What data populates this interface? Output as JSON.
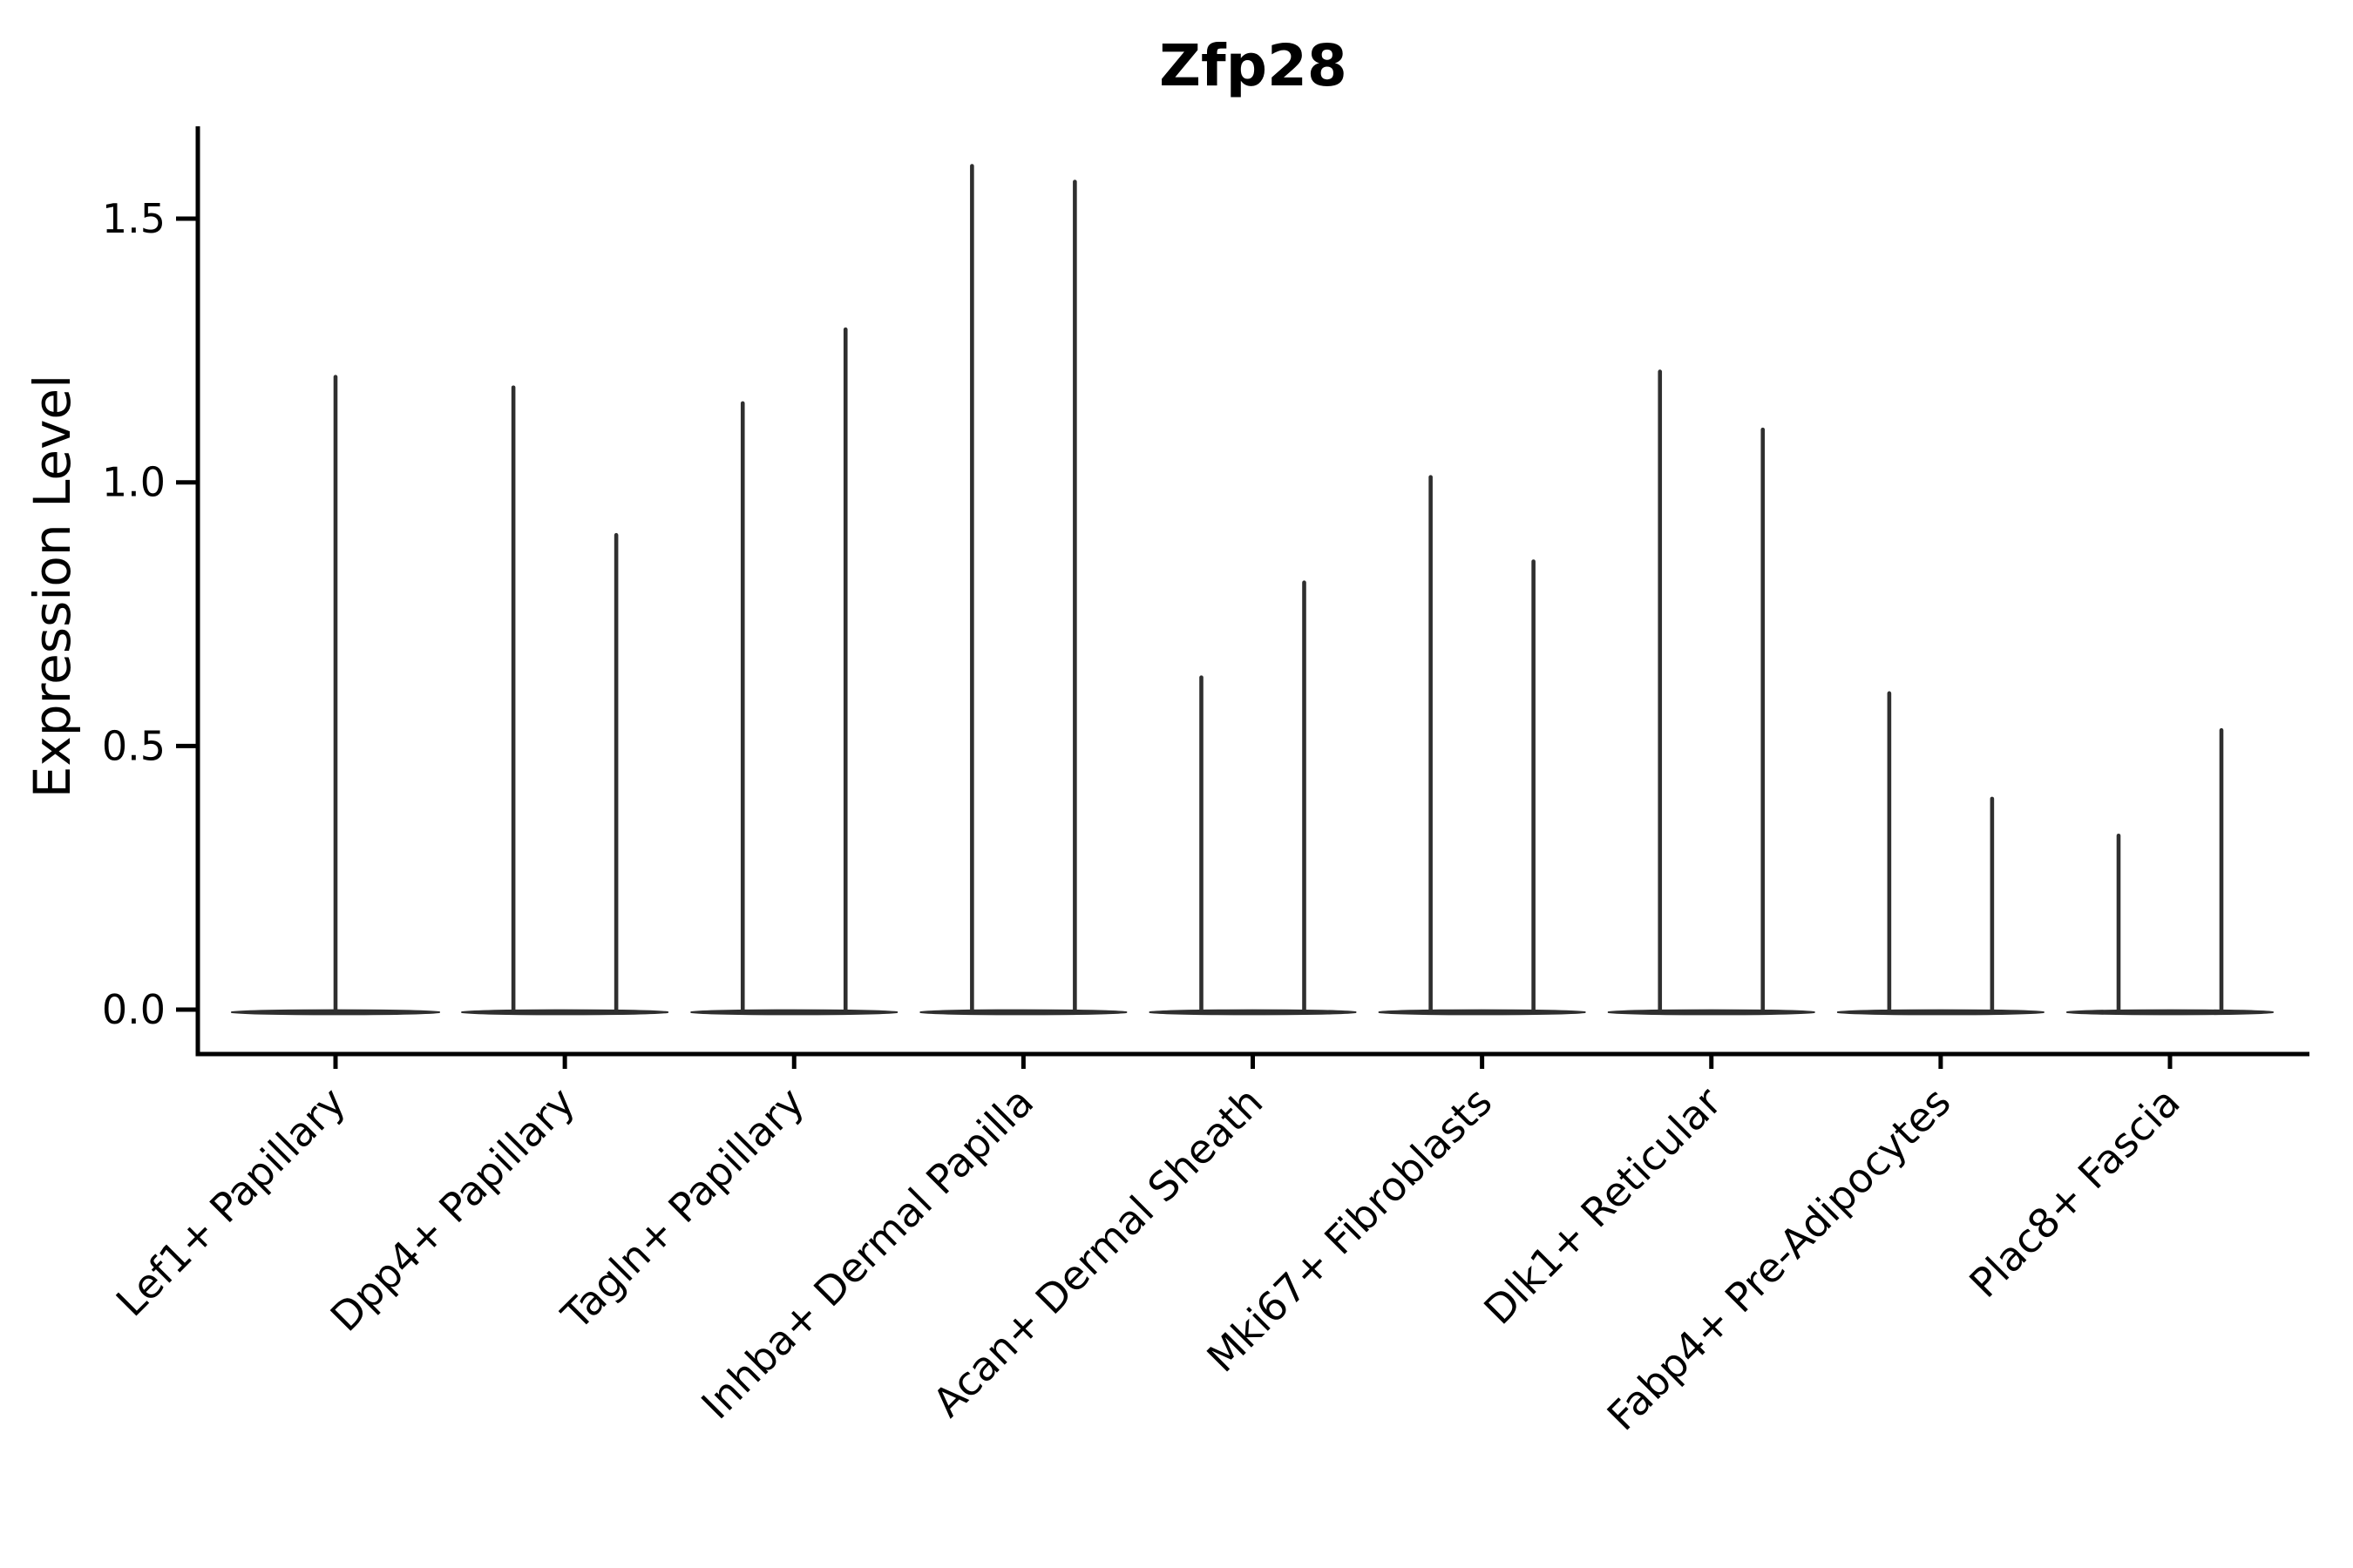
{
  "chart_data": {
    "type": "violin",
    "title": "Zfp28",
    "xlabel": "",
    "ylabel": "Expression Level",
    "categories": [
      "Lef1+ Papillary",
      "Dpp4+ Papillary",
      "Tagln+ Papillary",
      "Inhba+ Dermal Papilla",
      "Acan+ Dermal Sheath",
      "Mki67+ Fibroblasts",
      "Dlk1+ Reticular",
      "Fabp4+ Pre-Adipocytes",
      "Plac8+ Fascia"
    ],
    "description": "Needle-thin violins: bulk of density at 0 (flat baseline lens), thin spike up to max expression. First category has one centered violin; all others have two side-by-side violins.",
    "violin_max_expression": [
      [
        1.2
      ],
      [
        1.18,
        0.9
      ],
      [
        1.15,
        1.29
      ],
      [
        1.6,
        1.57
      ],
      [
        0.63,
        0.81
      ],
      [
        1.01,
        0.85
      ],
      [
        1.21,
        1.1
      ],
      [
        0.6,
        0.4
      ],
      [
        0.33,
        0.53
      ]
    ],
    "baseline_value": 0.0,
    "yticks": [
      0.0,
      0.5,
      1.0,
      1.5
    ],
    "ytick_labels": [
      "0.0",
      "0.5",
      "1.0",
      "1.5"
    ],
    "ylim": [
      -0.085,
      1.675
    ],
    "x_tick_rotation_deg": 45,
    "grid": false,
    "legend": "none",
    "colors": {
      "violin": "#2f2f2f",
      "axis": "#000000",
      "text": "#000000",
      "background": "#ffffff"
    }
  }
}
